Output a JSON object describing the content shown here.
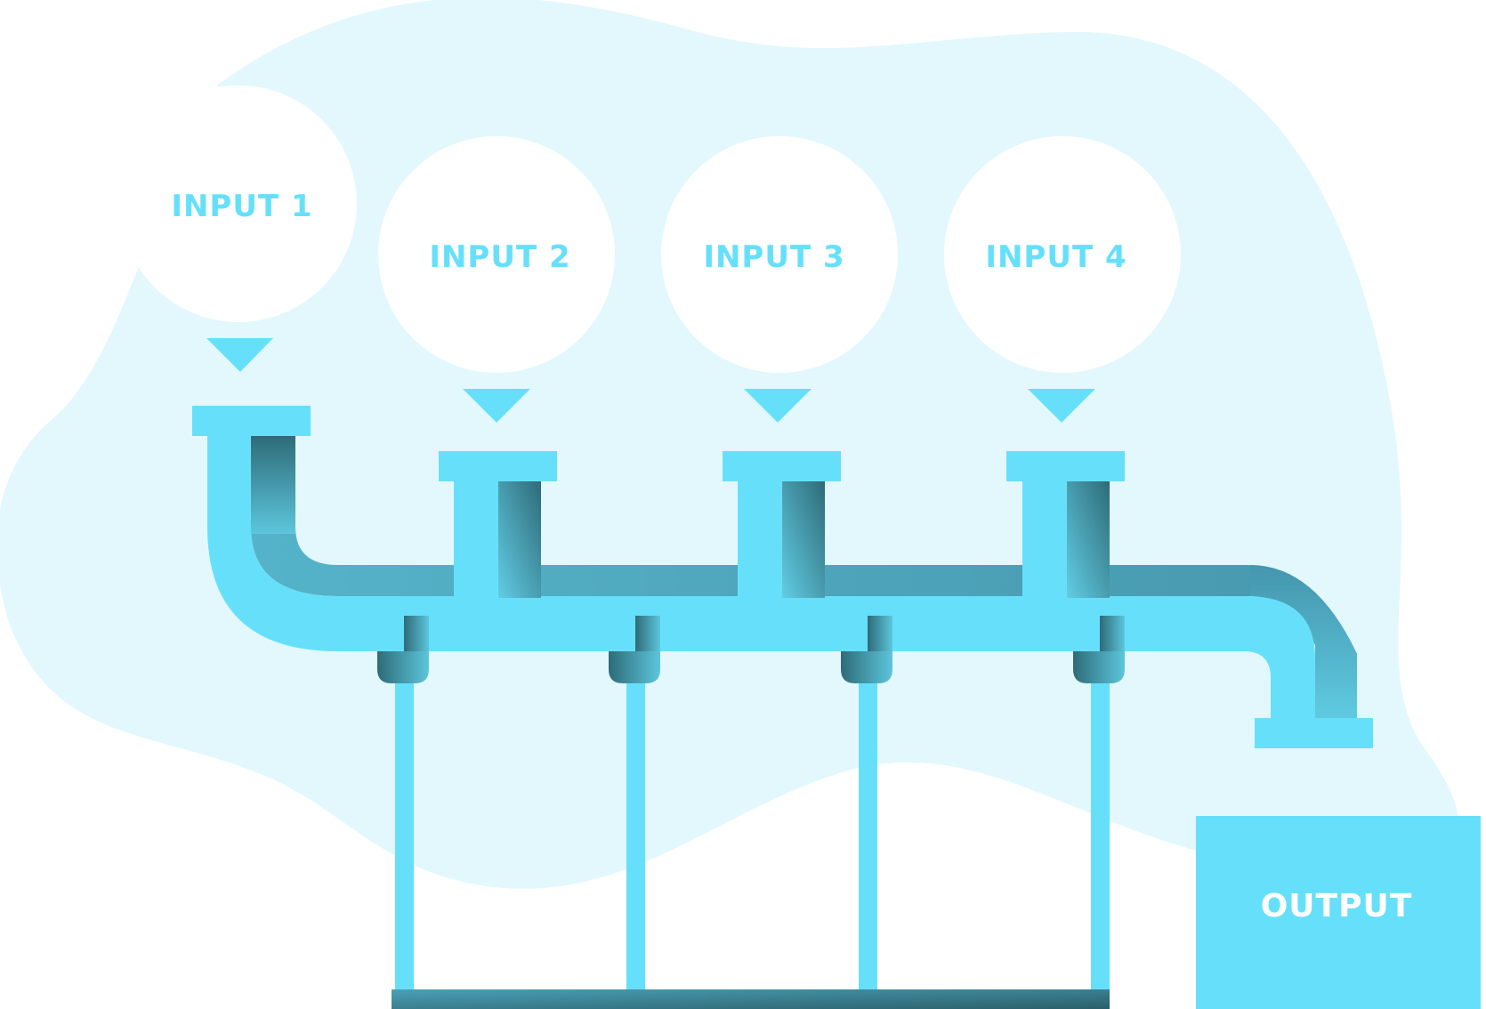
{
  "inputs": [
    {
      "label": "INPUT 1"
    },
    {
      "label": "INPUT 2"
    },
    {
      "label": "INPUT 3"
    },
    {
      "label": "INPUT 4"
    }
  ],
  "output": {
    "label": "OUTPUT"
  },
  "colors": {
    "blob": "#e2f8fd",
    "pipe_light": "#66e0fa",
    "pipe_dark": "#2e6b78",
    "pipe_mid": "#4fa9c0",
    "bubble": "#ffffff"
  }
}
